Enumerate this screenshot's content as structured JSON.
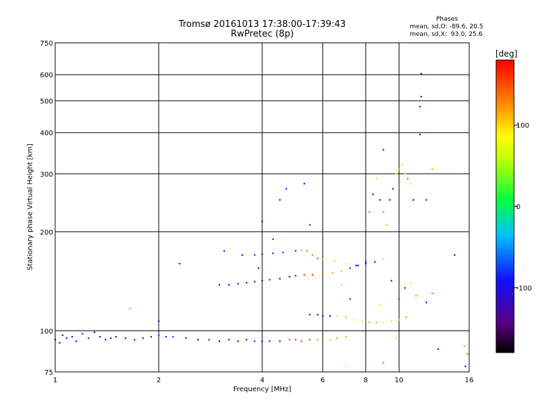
{
  "chart_data": {
    "type": "scatter",
    "title": "Tromsø 20161013 17:38:00-17:39:43",
    "subtitle": "RwPretec (8p)",
    "xlabel": "Frequency [MHz]",
    "ylabel": "Stationary phase Virtual Height [km]",
    "x_scale": "log",
    "y_scale": "log",
    "xlim": [
      1,
      16
    ],
    "ylim": [
      75,
      750
    ],
    "x_ticks": [
      1,
      2,
      4,
      6,
      8,
      10,
      16
    ],
    "y_ticks": [
      75,
      100,
      200,
      300,
      400,
      500,
      600,
      750
    ],
    "grid": true,
    "stats": {
      "heading": "Phases",
      "line_o": "mean, sd,O: -89.6, 20.5",
      "line_x": "mean, sd,X:  93.0, 25.6"
    },
    "colorbar": {
      "label": "[deg]",
      "range": [
        -180,
        180
      ],
      "ticks": [
        "100",
        "0",
        "-100"
      ],
      "tick_values": [
        100,
        0,
        -100
      ]
    },
    "series": [
      {
        "description": "main low echo trace",
        "points": [
          [
            1.0,
            94,
            -95
          ],
          [
            1.03,
            92,
            -90
          ],
          [
            1.05,
            97,
            -100
          ],
          [
            1.08,
            95,
            -85
          ],
          [
            1.12,
            96,
            -120
          ],
          [
            1.15,
            93,
            -95
          ],
          [
            1.2,
            98,
            -80
          ],
          [
            1.25,
            95,
            -110
          ],
          [
            1.3,
            99,
            -100
          ],
          [
            1.35,
            96,
            -90
          ],
          [
            1.4,
            94,
            -115
          ],
          [
            1.45,
            95,
            -95
          ],
          [
            1.5,
            96,
            -100
          ],
          [
            1.6,
            95,
            -85
          ],
          [
            1.7,
            94,
            -105
          ],
          [
            1.8,
            95,
            -95
          ],
          [
            1.9,
            96,
            -100
          ],
          [
            2.0,
            97,
            -80
          ],
          [
            2.1,
            96,
            -95
          ],
          [
            2.2,
            96,
            -70
          ],
          [
            2.4,
            95,
            -85
          ],
          [
            2.6,
            94,
            -90
          ],
          [
            2.8,
            94,
            -80
          ],
          [
            3.0,
            93,
            -100
          ],
          [
            3.2,
            94,
            -85
          ],
          [
            3.4,
            93,
            -90
          ],
          [
            3.6,
            94,
            -95
          ],
          [
            3.8,
            93,
            -80
          ],
          [
            4.0,
            93,
            -90
          ],
          [
            4.2,
            93,
            -85
          ],
          [
            4.5,
            93,
            -95
          ],
          [
            4.8,
            94,
            150
          ],
          [
            5.0,
            94,
            160
          ],
          [
            5.2,
            93,
            145
          ],
          [
            5.5,
            94,
            150
          ],
          [
            5.8,
            94,
            130
          ],
          [
            6.0,
            93,
            140
          ],
          [
            6.3,
            94,
            110
          ],
          [
            6.6,
            95,
            120
          ],
          [
            7.0,
            96,
            115
          ]
        ]
      },
      {
        "description": "lower E/F1 trace",
        "points": [
          [
            3.0,
            138,
            -95
          ],
          [
            3.2,
            138,
            -90
          ],
          [
            3.4,
            139,
            -85
          ],
          [
            3.6,
            140,
            -100
          ],
          [
            3.8,
            141,
            -90
          ],
          [
            4.0,
            142,
            -95
          ],
          [
            4.2,
            143,
            -85
          ],
          [
            4.5,
            144,
            -90
          ],
          [
            4.8,
            146,
            -95
          ],
          [
            5.0,
            147,
            -80
          ],
          [
            5.3,
            148,
            150
          ],
          [
            5.6,
            148,
            155
          ],
          [
            6.0,
            149,
            140
          ],
          [
            6.4,
            150,
            120
          ],
          [
            6.8,
            152,
            110
          ],
          [
            7.2,
            155,
            -85
          ],
          [
            7.6,
            158,
            -90
          ],
          [
            8.0,
            162,
            -100
          ]
        ]
      },
      {
        "description": "upper F trace",
        "points": [
          [
            3.5,
            170,
            -90
          ],
          [
            3.8,
            170,
            -85
          ],
          [
            4.0,
            171,
            -95
          ],
          [
            4.3,
            172,
            -90
          ],
          [
            4.6,
            173,
            -80
          ],
          [
            5.0,
            175,
            -90
          ],
          [
            5.2,
            176,
            120
          ],
          [
            5.4,
            175,
            140
          ],
          [
            5.6,
            170,
            130
          ],
          [
            5.8,
            166,
            150
          ],
          [
            6.0,
            165,
            110
          ],
          [
            6.5,
            163,
            100
          ],
          [
            7.0,
            160,
            80
          ],
          [
            7.5,
            158,
            -85
          ],
          [
            8.0,
            160,
            -95
          ],
          [
            8.5,
            162,
            -100
          ],
          [
            9.0,
            165,
            100
          ]
        ]
      },
      {
        "description": "second hop trace",
        "points": [
          [
            5.5,
            112,
            -85
          ],
          [
            5.8,
            112,
            -90
          ],
          [
            6.0,
            111,
            -95
          ],
          [
            6.3,
            111,
            -100
          ],
          [
            6.6,
            111,
            100
          ],
          [
            7.0,
            110,
            110
          ],
          [
            7.4,
            108,
            90
          ],
          [
            7.8,
            107,
            105
          ],
          [
            8.2,
            106,
            120
          ],
          [
            8.6,
            106,
            115
          ],
          [
            9.0,
            106,
            90
          ],
          [
            9.5,
            107,
            100
          ],
          [
            10.0,
            108,
            110
          ],
          [
            10.5,
            110,
            120
          ]
        ]
      },
      {
        "description": "scattered echoes near 8-11 MHz",
        "points": [
          [
            8.0,
            205,
            120
          ],
          [
            8.2,
            230,
            140
          ],
          [
            8.4,
            260,
            -90
          ],
          [
            8.6,
            290,
            100
          ],
          [
            8.8,
            250,
            -95
          ],
          [
            9.0,
            230,
            130
          ],
          [
            9.2,
            210,
            110
          ],
          [
            9.4,
            250,
            -100
          ],
          [
            9.6,
            270,
            -110
          ],
          [
            9.8,
            300,
            90
          ],
          [
            10.0,
            310,
            120
          ],
          [
            10.2,
            320,
            110
          ],
          [
            10.4,
            300,
            100
          ],
          [
            10.6,
            290,
            150
          ],
          [
            10.8,
            280,
            60
          ],
          [
            11.0,
            250,
            -90
          ],
          [
            9.0,
            355,
            -130
          ],
          [
            11.5,
            395,
            -100
          ],
          [
            11.5,
            480,
            -110
          ],
          [
            11.6,
            515,
            -120
          ],
          [
            11.6,
            605,
            -95
          ],
          [
            12.5,
            310,
            110
          ],
          [
            12.0,
            250,
            -85
          ],
          [
            10.0,
            125,
            -80
          ],
          [
            10.4,
            135,
            -90
          ],
          [
            10.8,
            140,
            90
          ],
          [
            11.2,
            128,
            130
          ],
          [
            12.0,
            122,
            -90
          ],
          [
            12.5,
            130,
            140
          ],
          [
            14.5,
            170,
            -95
          ],
          [
            15.5,
            90,
            120
          ],
          [
            15.8,
            85,
            140
          ],
          [
            15.6,
            78,
            -100
          ],
          [
            13.0,
            88,
            -90
          ],
          [
            9.0,
            80,
            140
          ],
          [
            9.8,
            95,
            100
          ],
          [
            8.8,
            120,
            90
          ],
          [
            7.2,
            125,
            -80
          ],
          [
            6.8,
            138,
            60
          ],
          [
            9.5,
            142,
            -100
          ]
        ]
      },
      {
        "description": "isolated echoes",
        "points": [
          [
            1.65,
            117,
            120
          ],
          [
            2.0,
            107,
            -100
          ],
          [
            2.3,
            160,
            -85
          ],
          [
            3.1,
            175,
            -95
          ],
          [
            4.0,
            215,
            -100
          ],
          [
            4.3,
            190,
            -85
          ],
          [
            4.7,
            270,
            -90
          ],
          [
            5.3,
            280,
            -95
          ],
          [
            5.5,
            210,
            -80
          ],
          [
            4.5,
            250,
            -100
          ],
          [
            3.9,
            155,
            -90
          ],
          [
            7.0,
            78,
            90
          ]
        ]
      }
    ]
  }
}
